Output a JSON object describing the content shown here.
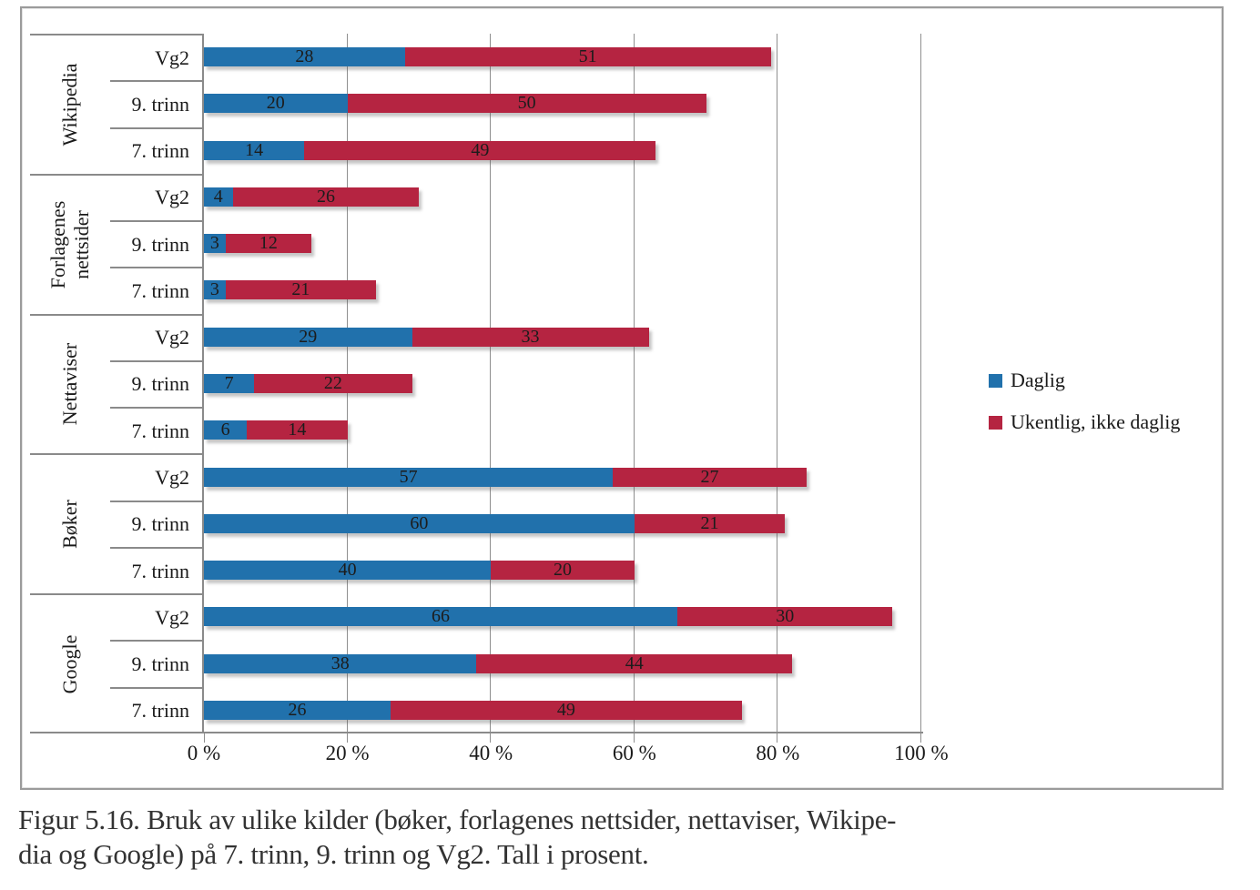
{
  "chart_data": {
    "type": "bar",
    "orientation": "horizontal",
    "stacked": true,
    "xlim": [
      0,
      100
    ],
    "x_ticks": [
      "0 %",
      "20 %",
      "40 %",
      "60 %",
      "80 %",
      "100 %"
    ],
    "grid": "vertical",
    "legend_position": "right",
    "series_names": [
      "Daglig",
      "Ukentlig, ikke daglig"
    ],
    "colors": [
      "#2171AC",
      "#B52441"
    ],
    "groups": [
      {
        "label": "Wikipedia",
        "rows": [
          {
            "label": "Vg2",
            "values": [
              28,
              51
            ]
          },
          {
            "label": "9. trinn",
            "values": [
              20,
              50
            ]
          },
          {
            "label": "7. trinn",
            "values": [
              14,
              49
            ]
          }
        ]
      },
      {
        "label": "Forlagenes nettsider",
        "rows": [
          {
            "label": "Vg2",
            "values": [
              4,
              26
            ]
          },
          {
            "label": "9. trinn",
            "values": [
              3,
              12
            ]
          },
          {
            "label": "7. trinn",
            "values": [
              3,
              21
            ]
          }
        ]
      },
      {
        "label": "Nettaviser",
        "rows": [
          {
            "label": "Vg2",
            "values": [
              29,
              33
            ]
          },
          {
            "label": "9. trinn",
            "values": [
              7,
              22
            ]
          },
          {
            "label": "7. trinn",
            "values": [
              6,
              14
            ]
          }
        ]
      },
      {
        "label": "Bøker",
        "rows": [
          {
            "label": "Vg2",
            "values": [
              57,
              27
            ]
          },
          {
            "label": "9. trinn",
            "values": [
              60,
              21
            ]
          },
          {
            "label": "7. trinn",
            "values": [
              40,
              20
            ]
          }
        ]
      },
      {
        "label": "Google",
        "rows": [
          {
            "label": "Vg2",
            "values": [
              66,
              30
            ]
          },
          {
            "label": "9. trinn",
            "values": [
              38,
              44
            ]
          },
          {
            "label": "7. trinn",
            "values": [
              26,
              49
            ]
          }
        ]
      }
    ]
  },
  "legend": {
    "items": [
      {
        "label": "Daglig",
        "color": "#2171AC"
      },
      {
        "label": "Ukentlig, ikke daglig",
        "color": "#B52441"
      }
    ]
  },
  "caption": {
    "lines": [
      "Figur 5.16. Bruk av ulike kilder (bøker, forlagenes nettsider, nettaviser, Wikipe-",
      "dia og Google) på 7. trinn, 9. trinn og Vg2. Tall i prosent."
    ]
  }
}
